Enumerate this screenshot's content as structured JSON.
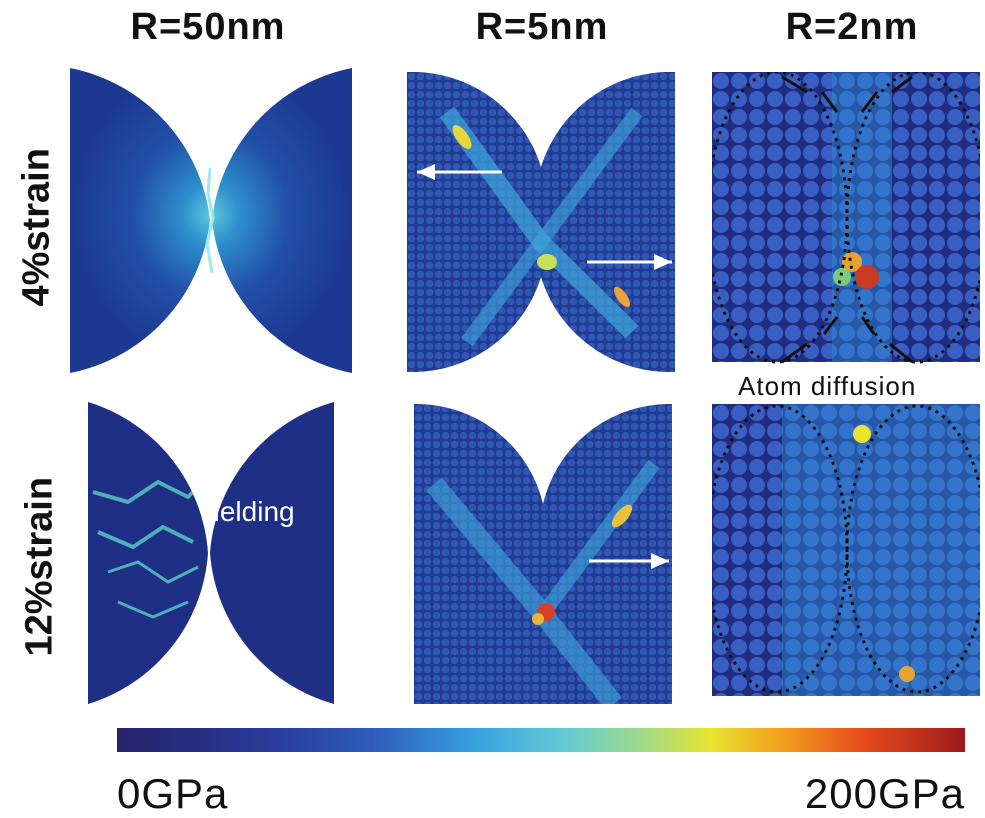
{
  "columns": [
    "R=50nm",
    "R=5nm",
    "R=2nm"
  ],
  "rows": [
    "4%strain",
    "12%strain"
  ],
  "annotations": {
    "yielding": "Yielding",
    "atom_diffusion": "Atom diffusion"
  },
  "colorbar": {
    "min_label": "0GPa",
    "max_label": "200GPa",
    "colors": [
      "#25236a",
      "#2d5bbd",
      "#36a0e0",
      "#9fdc8a",
      "#e8e430",
      "#e64b1c",
      "#9e1a1a"
    ]
  }
}
